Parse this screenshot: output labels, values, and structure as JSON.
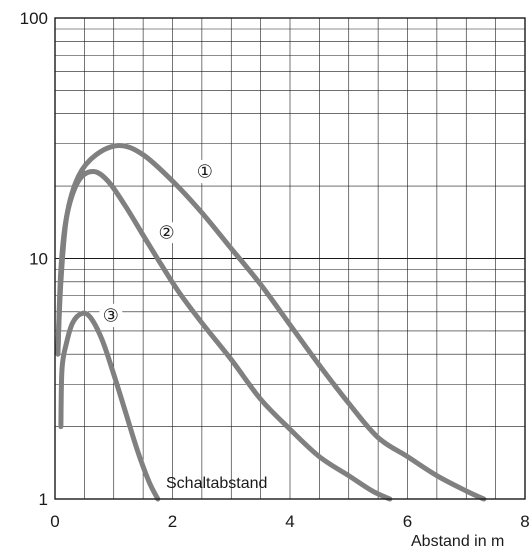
{
  "chart_data": {
    "type": "line",
    "xlabel": "Abstand in m",
    "x_ticks": [
      "0",
      "2",
      "4",
      "6",
      "8"
    ],
    "y_ticks": [
      "1",
      "10",
      "100"
    ],
    "xlim": [
      0,
      8
    ],
    "ylim": [
      1,
      100
    ],
    "yscale": "log",
    "grid": true,
    "annotation": "Schaltabstand",
    "series": [
      {
        "name": "①",
        "color": "#808080",
        "points": [
          [
            0.05,
            4.2
          ],
          [
            0.1,
            8
          ],
          [
            0.2,
            15
          ],
          [
            0.4,
            22
          ],
          [
            0.7,
            27
          ],
          [
            1.1,
            29.5
          ],
          [
            1.5,
            27
          ],
          [
            2.0,
            21
          ],
          [
            2.5,
            15.5
          ],
          [
            3.0,
            11
          ],
          [
            3.5,
            7.8
          ],
          [
            4.0,
            5.3
          ],
          [
            4.5,
            3.6
          ],
          [
            5.0,
            2.5
          ],
          [
            5.5,
            1.8
          ],
          [
            6.0,
            1.5
          ],
          [
            6.5,
            1.25
          ],
          [
            7.0,
            1.08
          ],
          [
            7.3,
            1.0
          ]
        ]
      },
      {
        "name": "②",
        "color": "#808080",
        "points": [
          [
            0.05,
            4.0
          ],
          [
            0.1,
            9
          ],
          [
            0.2,
            15
          ],
          [
            0.4,
            21
          ],
          [
            0.65,
            23
          ],
          [
            0.9,
            21
          ],
          [
            1.2,
            16.5
          ],
          [
            1.5,
            12.5
          ],
          [
            1.8,
            9.5
          ],
          [
            2.1,
            7.3
          ],
          [
            2.5,
            5.4
          ],
          [
            3.0,
            3.8
          ],
          [
            3.5,
            2.6
          ],
          [
            4.0,
            1.95
          ],
          [
            4.5,
            1.5
          ],
          [
            5.0,
            1.25
          ],
          [
            5.4,
            1.08
          ],
          [
            5.7,
            1.0
          ]
        ]
      },
      {
        "name": "③",
        "color": "#808080",
        "points": [
          [
            0.1,
            2.0
          ],
          [
            0.12,
            3.5
          ],
          [
            0.2,
            4.5
          ],
          [
            0.3,
            5.4
          ],
          [
            0.45,
            5.9
          ],
          [
            0.6,
            5.7
          ],
          [
            0.8,
            4.6
          ],
          [
            1.0,
            3.3
          ],
          [
            1.2,
            2.3
          ],
          [
            1.4,
            1.6
          ],
          [
            1.6,
            1.18
          ],
          [
            1.75,
            1.0
          ]
        ]
      }
    ],
    "labels": [
      {
        "text": "①",
        "x": 2.55,
        "y": 23
      },
      {
        "text": "②",
        "x": 1.9,
        "y": 12.8
      },
      {
        "text": "③",
        "x": 0.95,
        "y": 5.8
      }
    ]
  }
}
